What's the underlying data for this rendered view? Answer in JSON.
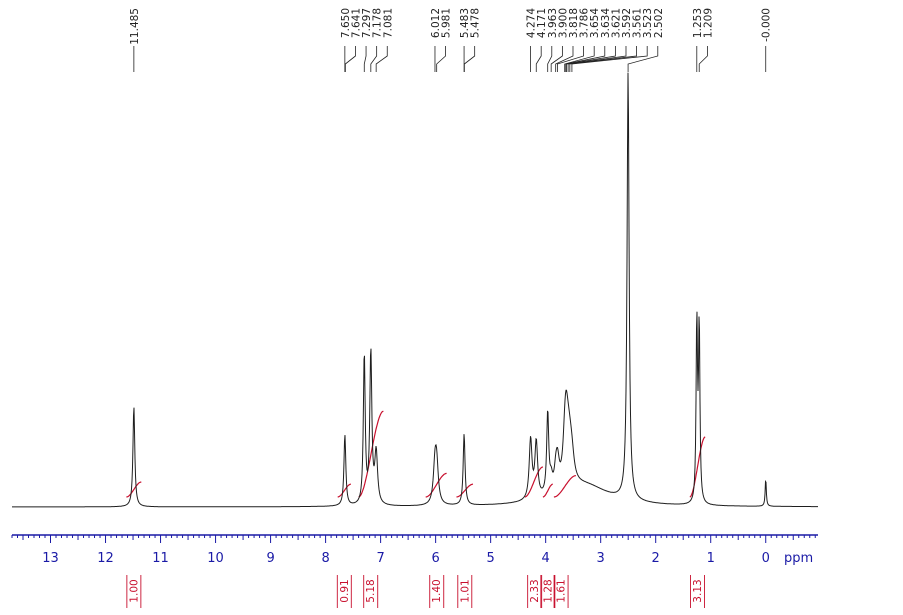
{
  "chart_data": {
    "type": "line",
    "title": "",
    "xlabel": "ppm",
    "ylabel": "",
    "x_reversed": true,
    "xlim": [
      13.7,
      -0.95
    ],
    "x_ticks": [
      13,
      12,
      11,
      10,
      9,
      8,
      7,
      6,
      5,
      4,
      3,
      2,
      1,
      0
    ],
    "x_minor_step": 0.1,
    "grid": false,
    "legend": "none",
    "colors": {
      "spectrum": "#1e1e1e",
      "axis": "#1a1aa6",
      "integral": "#c8102e",
      "labels": "#222222"
    },
    "peak_labels": [
      "11.485",
      "7.650",
      "7.641",
      "7.297",
      "7.178",
      "7.081",
      "6.012",
      "5.981",
      "5.483",
      "5.478",
      "4.274",
      "4.171",
      "3.963",
      "3.900",
      "3.818",
      "3.786",
      "3.654",
      "3.634",
      "3.621",
      "3.592",
      "3.561",
      "3.523",
      "2.502",
      "1.253",
      "1.209",
      "-0.000"
    ],
    "peaks": [
      {
        "ppm": 11.485,
        "height": 0.235,
        "width": 0.02
      },
      {
        "ppm": 7.65,
        "height": 0.158,
        "width": 0.02
      },
      {
        "ppm": 7.641,
        "height": 0.01,
        "width": 0.02
      },
      {
        "ppm": 7.297,
        "height": 0.35,
        "width": 0.02
      },
      {
        "ppm": 7.178,
        "height": 0.355,
        "width": 0.022
      },
      {
        "ppm": 7.081,
        "height": 0.12,
        "width": 0.03
      },
      {
        "ppm": 6.012,
        "height": 0.085,
        "width": 0.035
      },
      {
        "ppm": 5.981,
        "height": 0.085,
        "width": 0.035
      },
      {
        "ppm": 5.483,
        "height": 0.148,
        "width": 0.02
      },
      {
        "ppm": 5.478,
        "height": 0.02,
        "width": 0.02
      },
      {
        "ppm": 4.274,
        "height": 0.14,
        "width": 0.03
      },
      {
        "ppm": 4.171,
        "height": 0.13,
        "width": 0.03
      },
      {
        "ppm": 3.963,
        "height": 0.19,
        "width": 0.022
      },
      {
        "ppm": 3.9,
        "height": 0.03,
        "width": 0.03
      },
      {
        "ppm": 3.818,
        "height": 0.03,
        "width": 0.03
      },
      {
        "ppm": 3.786,
        "height": 0.07,
        "width": 0.04
      },
      {
        "ppm": 3.654,
        "height": 0.07,
        "width": 0.04
      },
      {
        "ppm": 3.634,
        "height": 0.06,
        "width": 0.04
      },
      {
        "ppm": 3.621,
        "height": 0.06,
        "width": 0.04
      },
      {
        "ppm": 3.592,
        "height": 0.055,
        "width": 0.045
      },
      {
        "ppm": 3.561,
        "height": 0.055,
        "width": 0.05
      },
      {
        "ppm": 3.523,
        "height": 0.05,
        "width": 0.05
      },
      {
        "ppm": 2.502,
        "height": 1.0,
        "width": 0.022
      },
      {
        "ppm": 1.253,
        "height": 0.425,
        "width": 0.015
      },
      {
        "ppm": 1.209,
        "height": 0.415,
        "width": 0.015
      },
      {
        "ppm": 0.0,
        "height": 0.065,
        "width": 0.012
      }
    ],
    "broad_features": [
      {
        "ppm": 3.3,
        "height": 0.05,
        "width": 0.55
      }
    ],
    "integrals": [
      {
        "value": "1.00",
        "from": 11.62,
        "to": 11.35,
        "center": 11.485
      },
      {
        "value": "0.91",
        "from": 7.78,
        "to": 7.54,
        "center": 7.66
      },
      {
        "value": "5.18",
        "from": 7.4,
        "to": 6.95,
        "center": 7.18
      },
      {
        "value": "1.40",
        "from": 6.18,
        "to": 5.8,
        "center": 5.98
      },
      {
        "value": "1.01",
        "from": 5.62,
        "to": 5.32,
        "center": 5.47
      },
      {
        "value": "2.33",
        "from": 4.38,
        "to": 4.05,
        "center": 4.2
      },
      {
        "value": "1.28",
        "from": 4.05,
        "to": 3.87,
        "center": 3.96
      },
      {
        "value": "1.61",
        "from": 3.85,
        "to": 3.45,
        "center": 3.72
      },
      {
        "value": "3.13",
        "from": 1.38,
        "to": 1.1,
        "center": 1.24
      }
    ],
    "integral_heights": [
      0.035,
      0.03,
      0.2,
      0.055,
      0.03,
      0.07,
      0.03,
      0.05,
      0.14
    ]
  }
}
